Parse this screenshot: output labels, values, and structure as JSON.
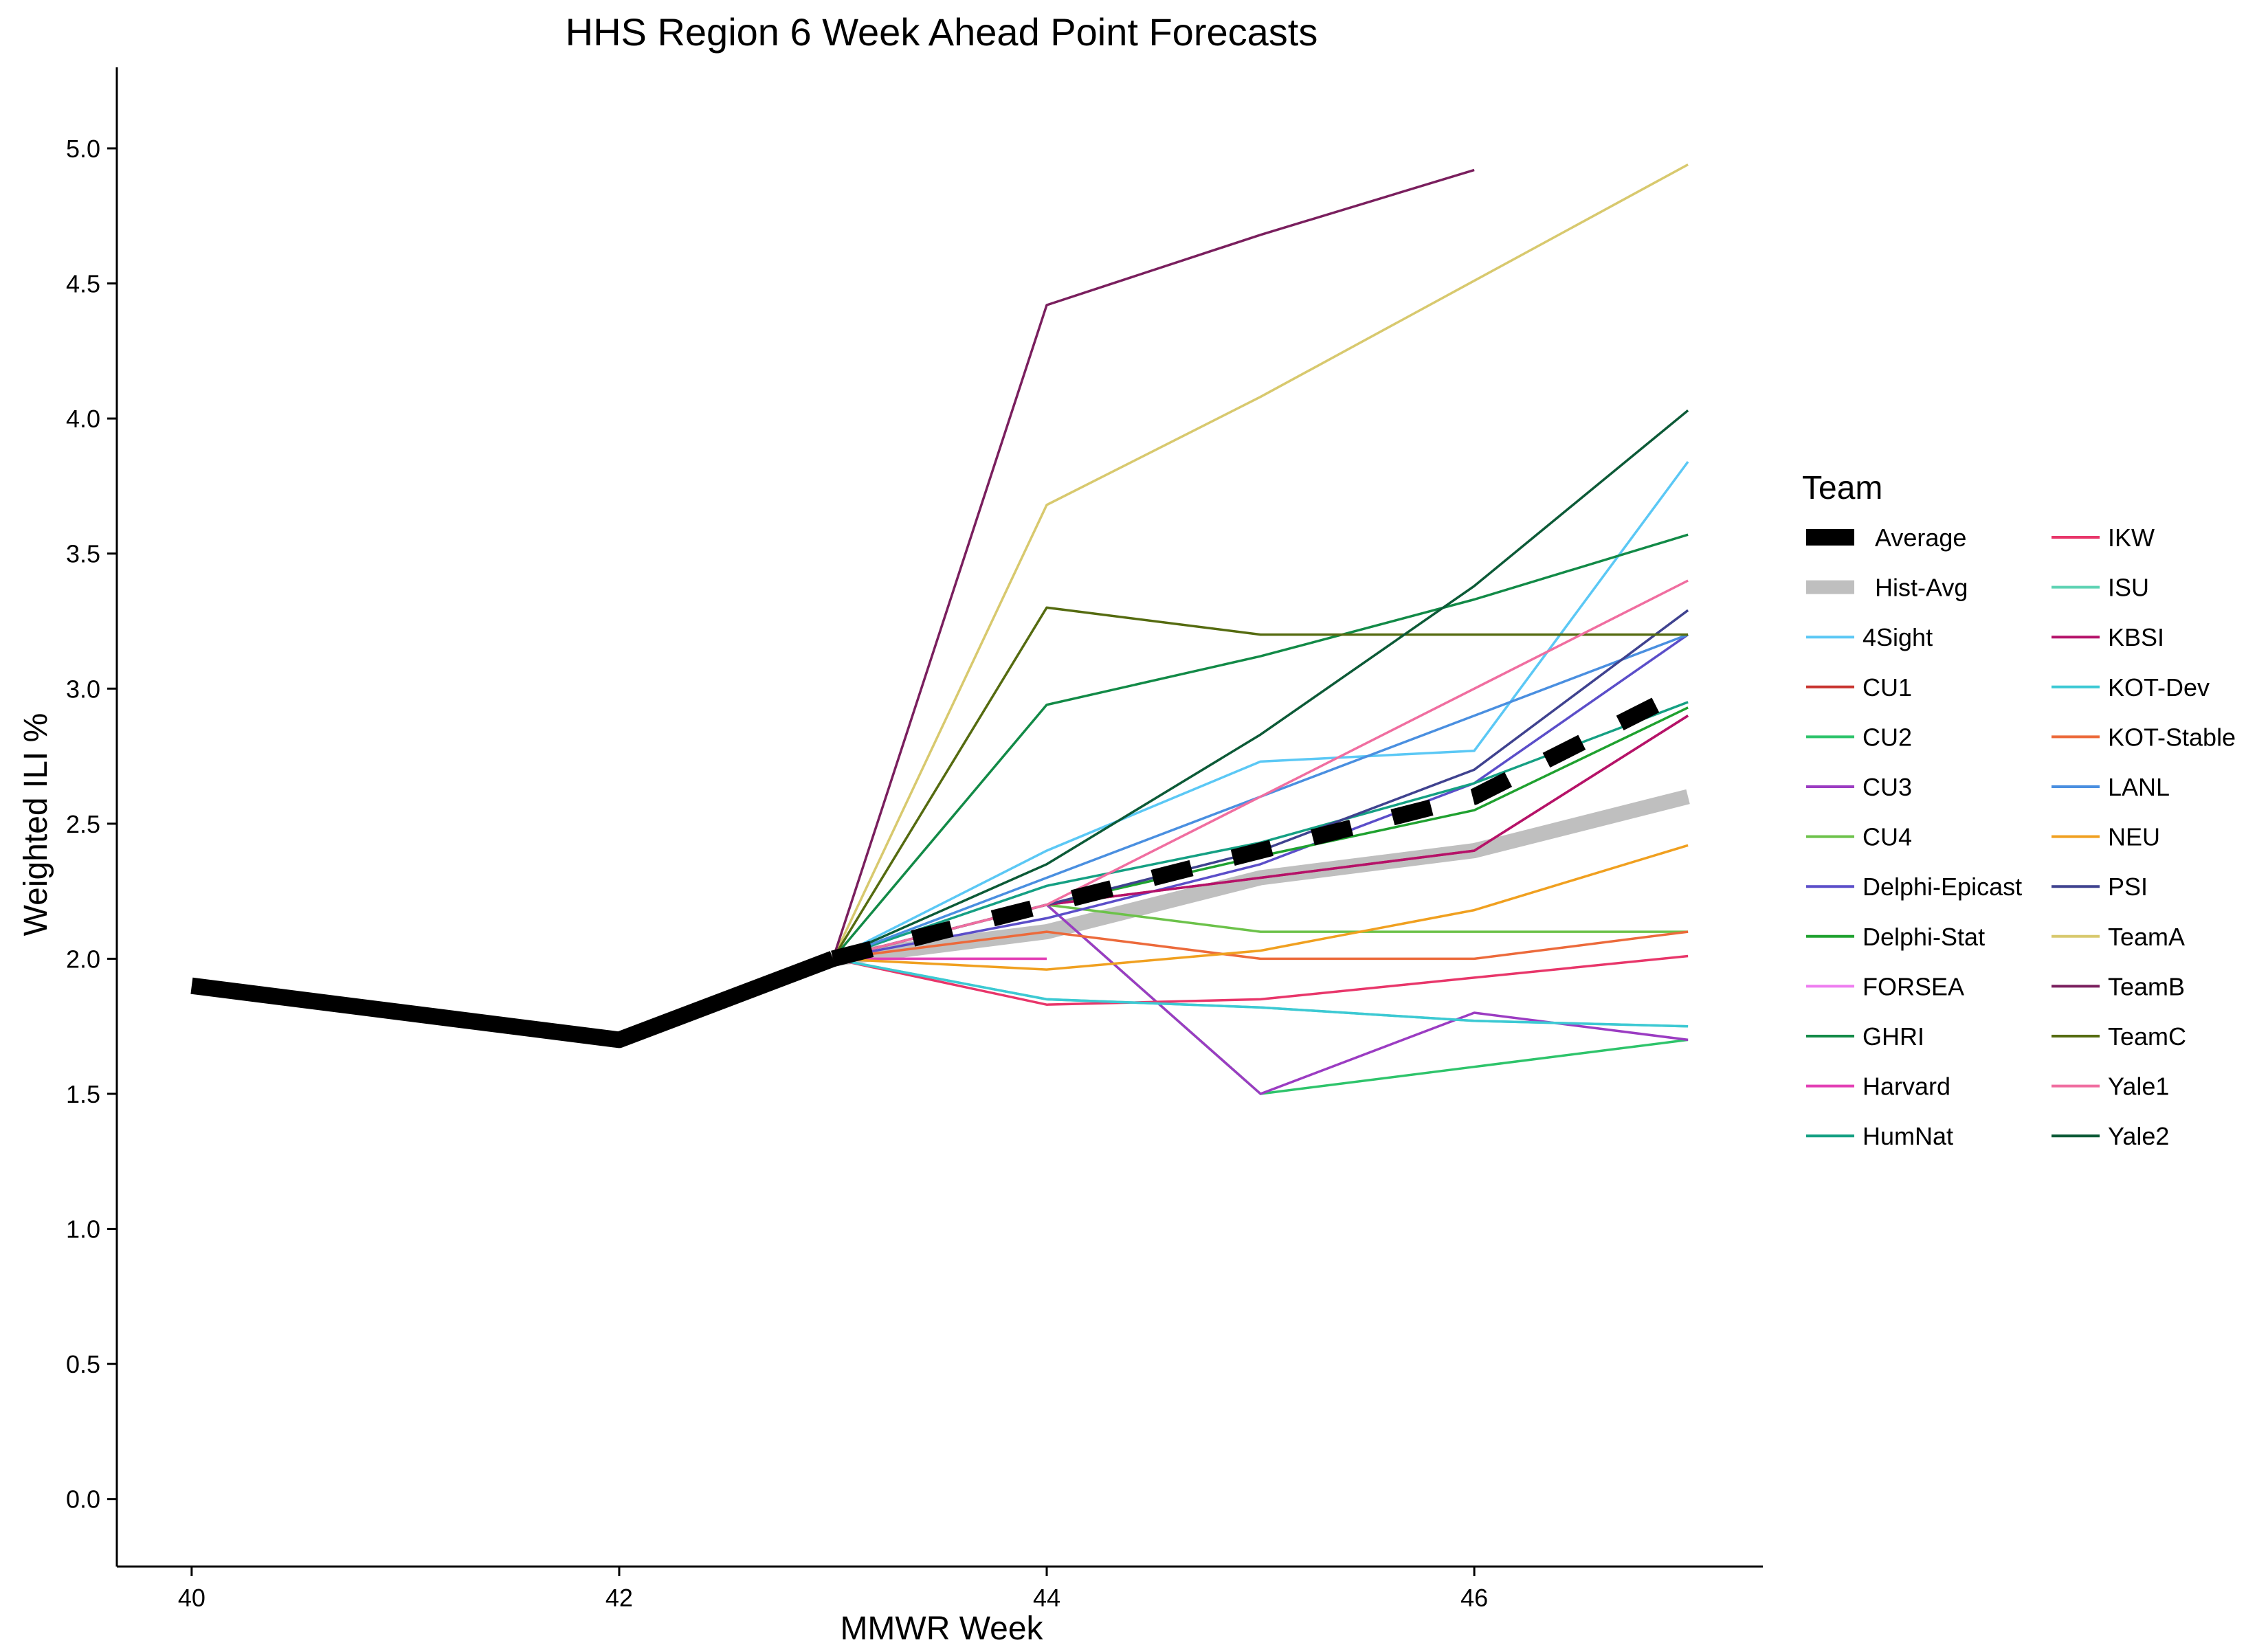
{
  "chart_data": {
    "type": "line",
    "title": "HHS Region 6 Week Ahead Point Forecasts",
    "xlabel": "MMWR Week",
    "ylabel": "Weighted ILI %",
    "xlim": [
      39.65,
      47.35
    ],
    "ylim": [
      -0.25,
      5.3
    ],
    "xticks": [
      40,
      42,
      44,
      46
    ],
    "xtick_labels": [
      "40",
      "42",
      "44",
      "46"
    ],
    "yticks": [
      0,
      0.5,
      1,
      1.5,
      2,
      2.5,
      3,
      3.5,
      4,
      4.5,
      5
    ],
    "ytick_labels": [
      "0.0",
      "0.5",
      "1.0",
      "1.5",
      "2.0",
      "2.5",
      "3.0",
      "3.5",
      "4.0",
      "4.5",
      "5.0"
    ],
    "grid": false,
    "legend": {
      "title": "Team",
      "placement": "right",
      "columns": 2
    },
    "observed": {
      "x": [
        40,
        42,
        43
      ],
      "y": [
        1.9,
        1.7,
        2.0
      ],
      "color": "#000000"
    },
    "series": [
      {
        "name": "Average",
        "color": "#000000",
        "style": "dashed-thick",
        "x": [
          43,
          44,
          45,
          46,
          47
        ],
        "y": [
          2.0,
          2.2,
          2.4,
          2.6,
          3.0
        ]
      },
      {
        "name": "Hist-Avg",
        "color": "#bfbfbf",
        "style": "thick",
        "x": [
          43,
          44,
          45,
          46,
          47
        ],
        "y": [
          2.0,
          2.1,
          2.3,
          2.4,
          2.6
        ]
      },
      {
        "name": "4Sight",
        "color": "#5bc8f5",
        "x": [
          43,
          44,
          45,
          46,
          47
        ],
        "y": [
          2.0,
          2.4,
          2.73,
          2.77,
          3.84
        ]
      },
      {
        "name": "CU1",
        "color": "#c8342f",
        "x": [
          43,
          44,
          45,
          46,
          47
        ],
        "y": [
          2.0,
          2.2,
          2.3,
          2.4,
          2.9
        ]
      },
      {
        "name": "CU2",
        "color": "#2ec46b",
        "x": [
          43,
          44,
          45,
          46,
          47
        ],
        "y": [
          2.0,
          2.2,
          1.5,
          1.6,
          1.7
        ]
      },
      {
        "name": "CU3",
        "color": "#9b3cc2",
        "x": [
          43,
          44,
          45,
          46,
          47
        ],
        "y": [
          2.0,
          2.2,
          1.5,
          1.8,
          1.7
        ]
      },
      {
        "name": "CU4",
        "color": "#6cc24a",
        "x": [
          43,
          44,
          45,
          46,
          47
        ],
        "y": [
          2.0,
          2.2,
          2.1,
          2.1,
          2.1
        ]
      },
      {
        "name": "Delphi-Epicast",
        "color": "#5b4ec9",
        "x": [
          43,
          44,
          45,
          46,
          47
        ],
        "y": [
          2.0,
          2.15,
          2.35,
          2.65,
          3.2
        ]
      },
      {
        "name": "Delphi-Stat",
        "color": "#1fa12f",
        "x": [
          43,
          44,
          45,
          46,
          47
        ],
        "y": [
          2.0,
          2.2,
          2.38,
          2.55,
          2.93
        ]
      },
      {
        "name": "FORSEA",
        "color": "#ee7cf0",
        "x": [
          43,
          44
        ],
        "y": [
          2.0,
          2.0
        ]
      },
      {
        "name": "GHRI",
        "color": "#128a47",
        "x": [
          43,
          44,
          45,
          46,
          47
        ],
        "y": [
          2.0,
          2.94,
          3.12,
          3.33,
          3.57
        ]
      },
      {
        "name": "Harvard",
        "color": "#e33fb5",
        "x": [
          43,
          44
        ],
        "y": [
          2.0,
          2.0
        ]
      },
      {
        "name": "HumNat",
        "color": "#15a083",
        "x": [
          43,
          44,
          45,
          46,
          47
        ],
        "y": [
          2.0,
          2.27,
          2.43,
          2.65,
          2.95
        ]
      },
      {
        "name": "IKW",
        "color": "#e8366a",
        "x": [
          43,
          44,
          45,
          46,
          47
        ],
        "y": [
          2.0,
          1.83,
          1.85,
          1.93,
          2.01
        ]
      },
      {
        "name": "ISU",
        "color": "#5fd3b4",
        "x": [
          43,
          44,
          45,
          46,
          47
        ],
        "y": [
          2.0,
          1.85,
          1.82,
          1.77,
          1.75
        ]
      },
      {
        "name": "KBSI",
        "color": "#b5126a",
        "x": [
          43,
          44,
          45,
          46,
          47
        ],
        "y": [
          2.0,
          2.2,
          2.3,
          2.4,
          2.9
        ]
      },
      {
        "name": "KOT-Dev",
        "color": "#3cc9d4",
        "x": [
          43,
          44,
          45,
          46,
          47
        ],
        "y": [
          2.0,
          1.85,
          1.82,
          1.77,
          1.75
        ]
      },
      {
        "name": "KOT-Stable",
        "color": "#ec6a3b",
        "x": [
          43,
          44,
          45,
          46,
          47
        ],
        "y": [
          2.0,
          2.1,
          2.0,
          2.0,
          2.1
        ]
      },
      {
        "name": "LANL",
        "color": "#4a8fe0",
        "x": [
          43,
          44,
          45,
          46,
          47
        ],
        "y": [
          2.0,
          2.3,
          2.6,
          2.9,
          3.2
        ]
      },
      {
        "name": "NEU",
        "color": "#f0a020",
        "x": [
          43,
          44,
          45,
          46,
          47
        ],
        "y": [
          2.0,
          1.96,
          2.03,
          2.18,
          2.42
        ]
      },
      {
        "name": "PSI",
        "color": "#3f428f",
        "x": [
          43,
          44,
          45,
          46,
          47
        ],
        "y": [
          2.0,
          2.2,
          2.4,
          2.7,
          3.29
        ]
      },
      {
        "name": "TeamA",
        "color": "#d8c96e",
        "x": [
          43,
          44,
          45,
          46,
          47
        ],
        "y": [
          2.0,
          3.68,
          4.08,
          4.51,
          4.94
        ]
      },
      {
        "name": "TeamB",
        "color": "#7a1f5e",
        "x": [
          43,
          44,
          45,
          46
        ],
        "y": [
          2.0,
          4.42,
          4.68,
          4.92
        ]
      },
      {
        "name": "TeamC",
        "color": "#556b10",
        "x": [
          43,
          44,
          45,
          46,
          47
        ],
        "y": [
          2.0,
          3.3,
          3.2,
          3.2,
          3.2
        ]
      },
      {
        "name": "Yale1",
        "color": "#f06ea0",
        "x": [
          43,
          44,
          45,
          46,
          47
        ],
        "y": [
          2.0,
          2.2,
          2.6,
          3.0,
          3.4
        ]
      },
      {
        "name": "Yale2",
        "color": "#0c5a37",
        "x": [
          43,
          44,
          45,
          46,
          47
        ],
        "y": [
          2.0,
          2.35,
          2.83,
          3.38,
          4.03
        ]
      }
    ]
  }
}
